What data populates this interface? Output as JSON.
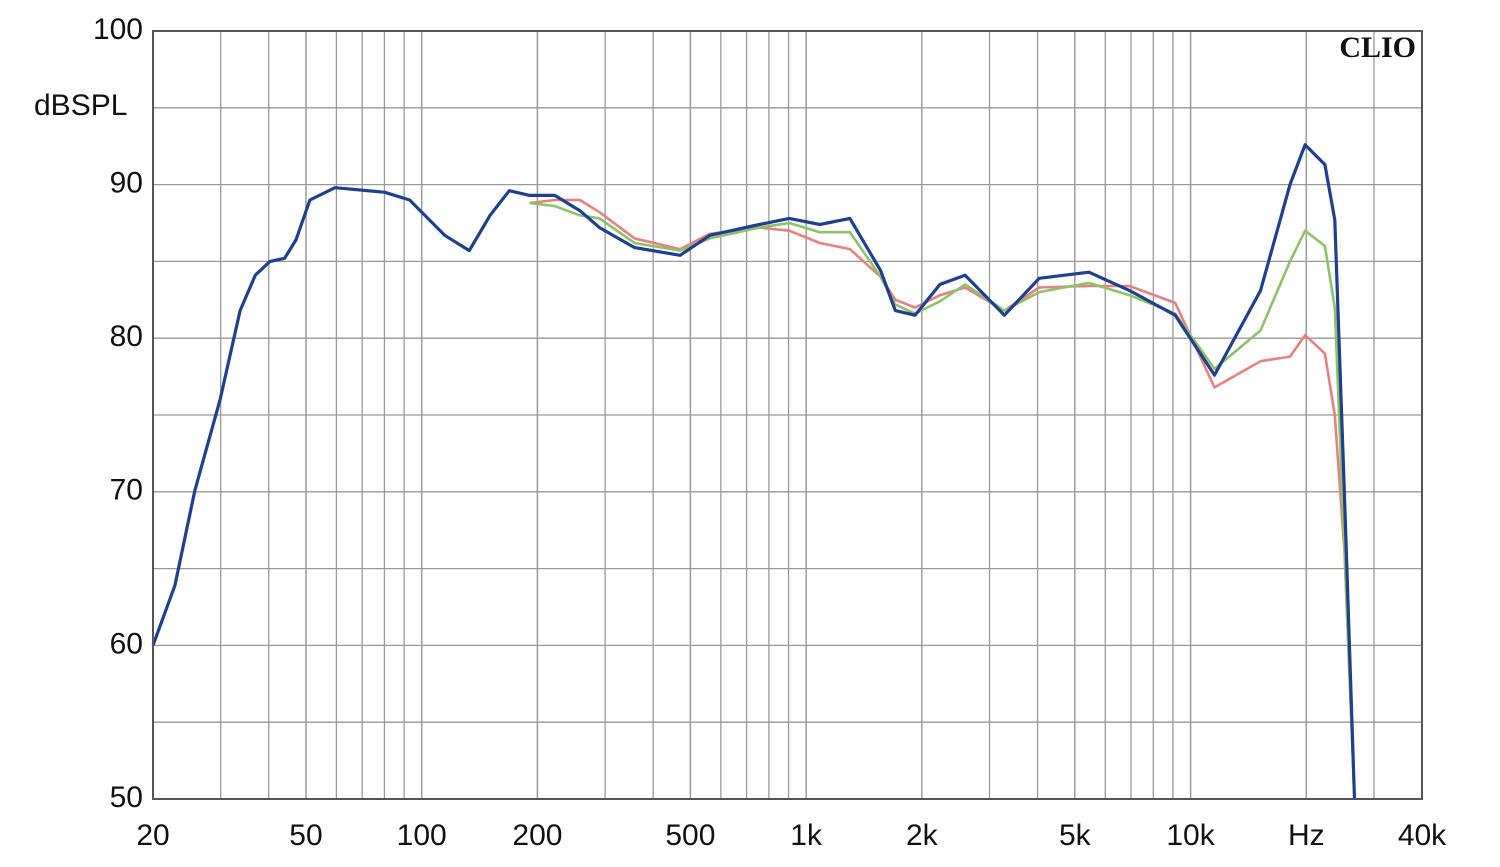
{
  "chart_data": {
    "type": "line",
    "y_label": "dBSPL",
    "watermark": "CLIO",
    "log_x": true,
    "grid": true,
    "x": [
      20,
      22.8,
      25.7,
      29.9,
      33.7,
      36.9,
      40.3,
      44,
      47.1,
      51.2,
      59.5,
      80.2,
      93,
      114.8,
      133,
      150.6,
      169,
      191,
      222,
      258,
      290,
      358,
      470,
      562,
      756,
      904,
      1086,
      1300,
      1562,
      1706,
      1920,
      2230,
      2592,
      3280,
      4040,
      5440,
      6940,
      9120,
      11540,
      15200,
      18140,
      19860,
      22360,
      23720,
      25160,
      26700
    ],
    "series": [
      {
        "color": "#e98080",
        "values": [
          null,
          null,
          null,
          null,
          null,
          null,
          null,
          null,
          null,
          null,
          null,
          null,
          null,
          null,
          null,
          null,
          null,
          88.8,
          89.0,
          89.0,
          88.2,
          86.5,
          85.8,
          86.8,
          87.2,
          87.0,
          86.2,
          85.8,
          84.0,
          82.5,
          82.0,
          82.8,
          83.3,
          81.8,
          83.3,
          83.4,
          83.4,
          82.3,
          76.8,
          78.5,
          78.8,
          80.2,
          79.0,
          75.0,
          66.0,
          50
        ]
      },
      {
        "color": "#8dc266",
        "values": [
          null,
          null,
          null,
          null,
          null,
          null,
          null,
          null,
          null,
          null,
          null,
          null,
          null,
          null,
          null,
          null,
          null,
          88.8,
          88.6,
          88.0,
          87.8,
          86.2,
          85.7,
          86.5,
          87.2,
          87.5,
          86.9,
          86.9,
          84.0,
          82.2,
          81.6,
          82.4,
          83.5,
          81.8,
          83.0,
          83.6,
          82.8,
          81.6,
          78.0,
          80.5,
          85.0,
          87.0,
          86.0,
          82.0,
          66.0,
          50
        ]
      },
      {
        "color": "#1f3f8f",
        "values": [
          60.0,
          63.9,
          70.1,
          76.0,
          81.8,
          84.1,
          85.0,
          85.2,
          86.4,
          89.0,
          89.8,
          89.5,
          89.0,
          86.7,
          85.7,
          88.0,
          89.6,
          89.3,
          89.3,
          88.3,
          87.2,
          85.9,
          85.4,
          86.7,
          87.4,
          87.8,
          87.4,
          87.8,
          84.4,
          81.8,
          81.5,
          83.5,
          84.1,
          81.5,
          83.9,
          84.3,
          83.1,
          81.5,
          77.6,
          83.1,
          90.0,
          92.6,
          91.3,
          87.7,
          69.5,
          50
        ]
      }
    ],
    "xlim": [
      20,
      40000
    ],
    "xticks": [
      20,
      50,
      100,
      200,
      500,
      {
        "value": 1000,
        "label": "1k"
      },
      {
        "value": 2000,
        "label": "2k"
      },
      {
        "value": 5000,
        "label": "5k"
      },
      {
        "value": 10000,
        "label": "10k"
      },
      {
        "value": 20000,
        "label": "Hz"
      },
      {
        "value": 40000,
        "label": "40k"
      }
    ],
    "ylim": [
      50,
      100
    ],
    "yticks": [
      50,
      60,
      70,
      80,
      90,
      100
    ]
  }
}
